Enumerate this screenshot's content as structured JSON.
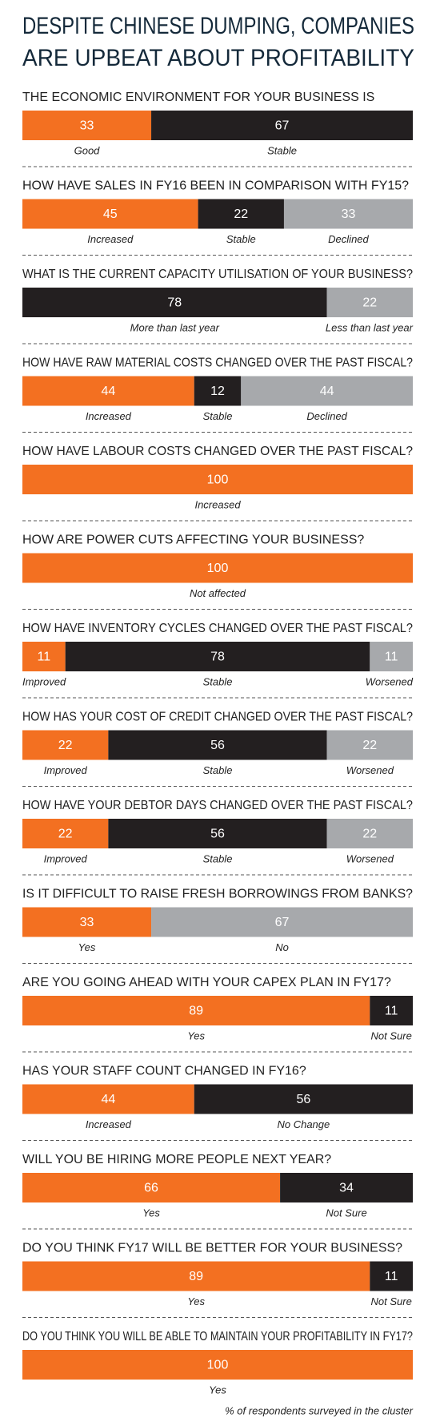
{
  "title": [
    "DESPITE CHINESE DUMPING, COMPANIES",
    "ARE UPBEAT ABOUT PROFITABILITY"
  ],
  "footnote": "% of respondents surveyed in the cluster",
  "chart_data": [
    {
      "type": "stacked-bar",
      "title": "THE ECONOMIC ENVIRONMENT FOR YOUR BUSINESS IS",
      "series": [
        {
          "name": "Good",
          "color": "#f37021",
          "values": [
            33
          ]
        },
        {
          "name": "Stable",
          "color": "#231f20",
          "values": [
            67
          ]
        }
      ]
    },
    {
      "type": "stacked-bar",
      "title": "HOW HAVE SALES IN FY16 BEEN IN COMPARISON WITH FY15?",
      "series": [
        {
          "name": "Increased",
          "color": "#f37021",
          "values": [
            45
          ]
        },
        {
          "name": "Stable",
          "color": "#231f20",
          "values": [
            22
          ]
        },
        {
          "name": "Declined",
          "color": "#a7a9ac",
          "values": [
            33
          ]
        }
      ]
    },
    {
      "type": "stacked-bar",
      "title": "WHAT IS THE CURRENT CAPACITY UTILISATION OF YOUR BUSINESS?",
      "series": [
        {
          "name": "More than last year",
          "color": "#231f20",
          "values": [
            78
          ]
        },
        {
          "name": "Less than last year",
          "color": "#a7a9ac",
          "values": [
            22
          ]
        }
      ]
    },
    {
      "type": "stacked-bar",
      "title": "HOW HAVE RAW MATERIAL COSTS CHANGED OVER THE PAST FISCAL?",
      "series": [
        {
          "name": "Increased",
          "color": "#f37021",
          "values": [
            44
          ]
        },
        {
          "name": "Stable",
          "color": "#231f20",
          "values": [
            12
          ]
        },
        {
          "name": "Declined",
          "color": "#a7a9ac",
          "values": [
            44
          ]
        }
      ]
    },
    {
      "type": "stacked-bar",
      "title": "HOW HAVE LABOUR COSTS CHANGED OVER THE PAST FISCAL?",
      "series": [
        {
          "name": "Increased",
          "color": "#f37021",
          "values": [
            100
          ]
        }
      ]
    },
    {
      "type": "stacked-bar",
      "title": "HOW ARE POWER CUTS AFFECTING YOUR BUSINESS?",
      "series": [
        {
          "name": "Not affected",
          "color": "#f37021",
          "values": [
            100
          ]
        }
      ]
    },
    {
      "type": "stacked-bar",
      "title": "HOW HAVE INVENTORY CYCLES CHANGED OVER THE PAST FISCAL?",
      "series": [
        {
          "name": "Improved",
          "color": "#f37021",
          "values": [
            11
          ]
        },
        {
          "name": "Stable",
          "color": "#231f20",
          "values": [
            78
          ]
        },
        {
          "name": "Worsened",
          "color": "#a7a9ac",
          "values": [
            11
          ]
        }
      ]
    },
    {
      "type": "stacked-bar",
      "title": "HOW HAS YOUR COST OF CREDIT CHANGED OVER THE PAST FISCAL?",
      "series": [
        {
          "name": "Improved",
          "color": "#f37021",
          "values": [
            22
          ]
        },
        {
          "name": "Stable",
          "color": "#231f20",
          "values": [
            56
          ]
        },
        {
          "name": "Worsened",
          "color": "#a7a9ac",
          "values": [
            22
          ]
        }
      ]
    },
    {
      "type": "stacked-bar",
      "title": "HOW HAVE YOUR DEBTOR DAYS CHANGED OVER THE PAST FISCAL?",
      "series": [
        {
          "name": "Improved",
          "color": "#f37021",
          "values": [
            22
          ]
        },
        {
          "name": "Stable",
          "color": "#231f20",
          "values": [
            56
          ]
        },
        {
          "name": "Worsened",
          "color": "#a7a9ac",
          "values": [
            22
          ]
        }
      ]
    },
    {
      "type": "stacked-bar",
      "title": "IS IT DIFFICULT TO RAISE FRESH BORROWINGS FROM BANKS?",
      "series": [
        {
          "name": "Yes",
          "color": "#f37021",
          "values": [
            33
          ]
        },
        {
          "name": "No",
          "color": "#a7a9ac",
          "values": [
            67
          ]
        }
      ]
    },
    {
      "type": "stacked-bar",
      "title": "ARE YOU GOING AHEAD WITH YOUR CAPEX PLAN IN FY17?",
      "series": [
        {
          "name": "Yes",
          "color": "#f37021",
          "values": [
            89
          ]
        },
        {
          "name": "Not Sure",
          "color": "#231f20",
          "values": [
            11
          ]
        }
      ]
    },
    {
      "type": "stacked-bar",
      "title": "HAS YOUR STAFF COUNT CHANGED IN FY16?",
      "series": [
        {
          "name": "Increased",
          "color": "#f37021",
          "values": [
            44
          ]
        },
        {
          "name": "No Change",
          "color": "#231f20",
          "values": [
            56
          ]
        }
      ]
    },
    {
      "type": "stacked-bar",
      "title": "WILL YOU BE HIRING MORE PEOPLE NEXT YEAR?",
      "series": [
        {
          "name": "Yes",
          "color": "#f37021",
          "values": [
            66
          ]
        },
        {
          "name": "Not Sure",
          "color": "#231f20",
          "values": [
            34
          ]
        }
      ]
    },
    {
      "type": "stacked-bar",
      "title": "DO YOU THINK FY17 WILL BE BETTER FOR YOUR BUSINESS?",
      "series": [
        {
          "name": "Yes",
          "color": "#f37021",
          "values": [
            89
          ]
        },
        {
          "name": "Not Sure",
          "color": "#231f20",
          "values": [
            11
          ]
        }
      ]
    },
    {
      "type": "stacked-bar",
      "title": "DO YOU THINK YOU WILL BE ABLE TO MAINTAIN YOUR PROFITABILITY IN FY17?",
      "series": [
        {
          "name": "Yes",
          "color": "#f37021",
          "values": [
            100
          ]
        }
      ]
    }
  ]
}
